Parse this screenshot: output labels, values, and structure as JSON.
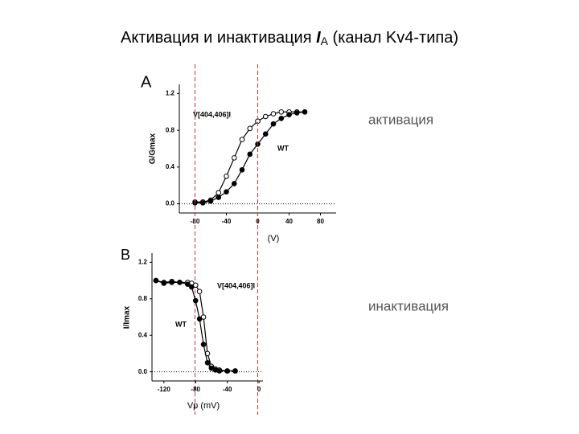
{
  "slide": {
    "title": [
      "Активация и инактивация ",
      "I",
      "A",
      " (канал Kv4-типа)"
    ],
    "annotations": [
      "активация",
      "инактивация"
    ]
  },
  "chart_data": [
    {
      "type": "scatter",
      "panel": "A",
      "ylabel": "G/Gmax",
      "xlabel": "(V)",
      "x": [
        -80,
        -70,
        -60,
        -50,
        -40,
        -30,
        -20,
        -10,
        0,
        10,
        20,
        30,
        40,
        50,
        60
      ],
      "series": [
        {
          "name": "V[404,406]I",
          "color": "#000000",
          "marker": "open",
          "values": [
            0.02,
            0.02,
            0.04,
            0.12,
            0.3,
            0.5,
            0.7,
            0.82,
            0.9,
            0.95,
            0.98,
            1.0,
            1.0,
            1.0,
            1.0
          ]
        },
        {
          "name": "WT",
          "color": "#000000",
          "marker": "filled",
          "values": [
            0.01,
            0.01,
            0.03,
            0.07,
            0.13,
            0.22,
            0.37,
            0.54,
            0.65,
            0.76,
            0.87,
            0.93,
            0.97,
            0.99,
            1.0
          ]
        }
      ],
      "xlim": [
        -100,
        100
      ],
      "ylim": [
        -0.1,
        1.3
      ],
      "xticks": [
        -80,
        -40,
        0,
        40,
        80
      ],
      "yticks": [
        {
          "value": 0,
          "label": "0.0"
        },
        {
          "value": 0.4,
          "label": "0.4"
        },
        {
          "value": 0.8,
          "label": "0.8"
        },
        {
          "value": 1.2,
          "label": "1.2"
        }
      ],
      "vlines": [
        -80,
        0
      ],
      "vline_color": "#c0392b"
    },
    {
      "type": "scatter",
      "panel": "B",
      "ylabel": "I/Imax",
      "xlabel": "Vp (mV)",
      "x": [
        -130,
        -120,
        -110,
        -100,
        -90,
        -85,
        -80,
        -75,
        -70,
        -65,
        -60,
        -55,
        -50,
        -40,
        -30
      ],
      "series": [
        {
          "name": "V[404,406]I",
          "color": "#000000",
          "marker": "open",
          "values": [
            1.0,
            0.98,
            0.99,
            0.98,
            0.98,
            0.97,
            0.95,
            0.88,
            0.6,
            0.2,
            0.06,
            0.03,
            0.02,
            0.01,
            0.01
          ]
        },
        {
          "name": "WT",
          "color": "#000000",
          "marker": "filled",
          "values": [
            1.0,
            0.97,
            0.98,
            0.98,
            0.96,
            0.93,
            0.78,
            0.58,
            0.3,
            0.1,
            0.04,
            0.02,
            0.01,
            0.01,
            0.01
          ]
        }
      ],
      "xlim": [
        -135,
        5
      ],
      "ylim": [
        -0.1,
        1.3
      ],
      "xticks": [
        -120,
        -80,
        -40,
        0
      ],
      "yticks": [
        {
          "value": 0,
          "label": "0.0"
        },
        {
          "value": 0.4,
          "label": "0.4"
        },
        {
          "value": 0.8,
          "label": "0.8"
        },
        {
          "value": 1.2,
          "label": "1.2"
        }
      ]
    }
  ]
}
